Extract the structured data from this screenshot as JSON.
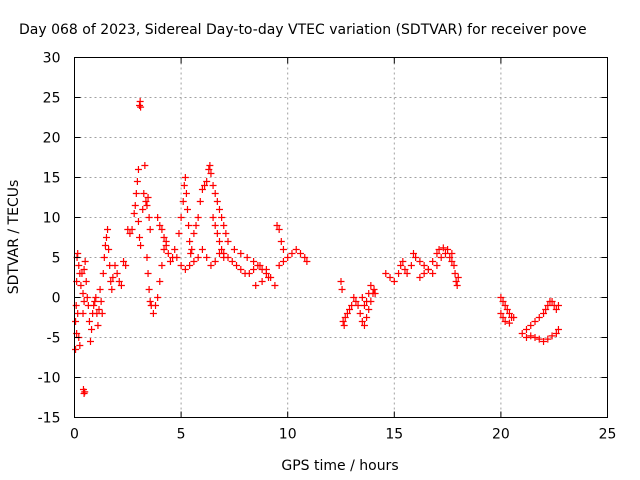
{
  "chart_data": {
    "type": "scatter",
    "title": "Day 068 of 2023, Sidereal Day-to-day VTEC variation (SDTVAR) for receiver pove",
    "xlabel": "GPS time / hours",
    "ylabel": "SDTVAR / TECUs",
    "xlim": [
      0,
      25
    ],
    "ylim": [
      -15,
      30
    ],
    "xticks": [
      0,
      5,
      10,
      15,
      20,
      25
    ],
    "yticks": [
      -15,
      -10,
      -5,
      0,
      5,
      10,
      15,
      20,
      25,
      30
    ],
    "grid": true,
    "marker": "+",
    "color": "#ff0000",
    "series": [
      {
        "name": "SDTVAR",
        "points": [
          [
            0.05,
            -6.5
          ],
          [
            0.05,
            -3
          ],
          [
            0.08,
            -1
          ],
          [
            0.1,
            2
          ],
          [
            0.12,
            5
          ],
          [
            0.15,
            5.5
          ],
          [
            0.2,
            4
          ],
          [
            0.25,
            3
          ],
          [
            0.3,
            1.5
          ],
          [
            0.35,
            3
          ],
          [
            0.4,
            0.5
          ],
          [
            0.45,
            3.5
          ],
          [
            0.5,
            4.5
          ],
          [
            0.1,
            -4.5
          ],
          [
            0.15,
            -2
          ],
          [
            0.2,
            -5
          ],
          [
            0.25,
            -6
          ],
          [
            0.4,
            -2
          ],
          [
            0.45,
            -0.5
          ],
          [
            0.42,
            -11.5
          ],
          [
            0.45,
            -12
          ],
          [
            0.48,
            -11.8
          ],
          [
            0.55,
            2
          ],
          [
            0.6,
            0
          ],
          [
            0.65,
            -1
          ],
          [
            0.7,
            -3
          ],
          [
            0.75,
            -5.5
          ],
          [
            0.8,
            -4
          ],
          [
            0.85,
            -2
          ],
          [
            0.9,
            -1
          ],
          [
            0.95,
            -0.5
          ],
          [
            1.0,
            0
          ],
          [
            1.05,
            -2
          ],
          [
            1.1,
            -3.5
          ],
          [
            1.15,
            -1.5
          ],
          [
            1.2,
            1
          ],
          [
            1.25,
            -0.5
          ],
          [
            1.3,
            -2
          ],
          [
            1.35,
            3
          ],
          [
            1.4,
            5
          ],
          [
            1.45,
            6.5
          ],
          [
            1.5,
            7.5
          ],
          [
            1.55,
            8.5
          ],
          [
            1.6,
            6
          ],
          [
            1.65,
            4
          ],
          [
            1.7,
            2
          ],
          [
            1.75,
            1
          ],
          [
            1.8,
            2.5
          ],
          [
            1.9,
            4
          ],
          [
            2.0,
            3
          ],
          [
            2.1,
            2
          ],
          [
            2.2,
            1.5
          ],
          [
            2.3,
            4.5
          ],
          [
            2.4,
            4
          ],
          [
            2.5,
            8.5
          ],
          [
            2.6,
            8
          ],
          [
            2.7,
            8.5
          ],
          [
            2.8,
            10.5
          ],
          [
            2.85,
            11.5
          ],
          [
            2.9,
            13
          ],
          [
            2.95,
            14.5
          ],
          [
            3.0,
            16
          ],
          [
            3.05,
            24
          ],
          [
            3.08,
            24.5
          ],
          [
            3.1,
            23.8
          ],
          [
            3.0,
            9.5
          ],
          [
            3.05,
            7.5
          ],
          [
            3.1,
            6.5
          ],
          [
            3.2,
            11
          ],
          [
            3.25,
            13
          ],
          [
            3.3,
            16.5
          ],
          [
            3.35,
            12
          ],
          [
            3.4,
            11.5
          ],
          [
            3.45,
            12.5
          ],
          [
            3.5,
            10
          ],
          [
            3.55,
            8.5
          ],
          [
            3.4,
            5
          ],
          [
            3.45,
            3
          ],
          [
            3.5,
            1
          ],
          [
            3.55,
            -0.5
          ],
          [
            3.6,
            -1
          ],
          [
            3.7,
            -2
          ],
          [
            3.8,
            -1
          ],
          [
            3.9,
            0
          ],
          [
            4.0,
            2
          ],
          [
            4.1,
            4
          ],
          [
            4.2,
            6
          ],
          [
            4.3,
            7
          ],
          [
            4.4,
            5.5
          ],
          [
            4.5,
            4.5
          ],
          [
            4.6,
            5
          ],
          [
            4.7,
            6
          ],
          [
            4.8,
            5
          ],
          [
            3.9,
            10
          ],
          [
            4.0,
            9
          ],
          [
            4.1,
            8.5
          ],
          [
            4.2,
            7.5
          ],
          [
            4.3,
            6.5
          ],
          [
            4.9,
            8
          ],
          [
            5.0,
            10
          ],
          [
            5.1,
            12
          ],
          [
            5.15,
            14
          ],
          [
            5.2,
            15
          ],
          [
            5.25,
            13
          ],
          [
            5.3,
            11
          ],
          [
            5.35,
            9
          ],
          [
            5.4,
            7
          ],
          [
            5.45,
            5.5
          ],
          [
            5.5,
            6
          ],
          [
            5.6,
            8
          ],
          [
            5.7,
            9
          ],
          [
            5.8,
            10
          ],
          [
            5.9,
            12
          ],
          [
            6.0,
            13.5
          ],
          [
            6.1,
            14
          ],
          [
            6.2,
            14.5
          ],
          [
            6.3,
            16
          ],
          [
            6.35,
            16.5
          ],
          [
            6.4,
            15.5
          ],
          [
            6.5,
            14
          ],
          [
            6.6,
            13
          ],
          [
            6.7,
            12
          ],
          [
            6.8,
            11
          ],
          [
            6.9,
            10
          ],
          [
            7.0,
            9
          ],
          [
            7.1,
            8
          ],
          [
            7.2,
            7
          ],
          [
            5.0,
            4
          ],
          [
            5.2,
            3.5
          ],
          [
            5.4,
            4
          ],
          [
            5.6,
            4.5
          ],
          [
            5.8,
            5
          ],
          [
            6.0,
            6
          ],
          [
            6.2,
            5
          ],
          [
            6.4,
            4
          ],
          [
            6.6,
            4.5
          ],
          [
            6.8,
            5.5
          ],
          [
            7.0,
            5
          ],
          [
            6.5,
            10
          ],
          [
            6.6,
            9
          ],
          [
            6.7,
            8
          ],
          [
            6.8,
            7
          ],
          [
            6.9,
            6
          ],
          [
            7.0,
            5.5
          ],
          [
            7.2,
            5
          ],
          [
            7.4,
            4.5
          ],
          [
            7.6,
            4
          ],
          [
            7.8,
            3.5
          ],
          [
            8.0,
            3
          ],
          [
            8.2,
            3
          ],
          [
            8.4,
            3.5
          ],
          [
            8.6,
            4
          ],
          [
            8.8,
            3.5
          ],
          [
            9.0,
            3
          ],
          [
            7.5,
            6
          ],
          [
            7.8,
            5.5
          ],
          [
            8.1,
            5
          ],
          [
            8.4,
            4.5
          ],
          [
            8.7,
            4
          ],
          [
            9.0,
            3.5
          ],
          [
            9.2,
            2.5
          ],
          [
            9.4,
            1.5
          ],
          [
            8.5,
            1.5
          ],
          [
            8.8,
            2
          ],
          [
            9.1,
            2.5
          ],
          [
            9.5,
            9
          ],
          [
            9.6,
            8.5
          ],
          [
            9.7,
            7
          ],
          [
            9.8,
            6
          ],
          [
            10.0,
            5
          ],
          [
            10.2,
            5.5
          ],
          [
            10.4,
            6
          ],
          [
            10.6,
            5.5
          ],
          [
            10.8,
            5
          ],
          [
            10.9,
            4.5
          ],
          [
            9.6,
            4
          ],
          [
            9.8,
            4.5
          ],
          [
            12.5,
            2
          ],
          [
            12.55,
            1
          ],
          [
            12.6,
            -3
          ],
          [
            12.65,
            -3.5
          ],
          [
            12.7,
            -2.5
          ],
          [
            12.8,
            -2
          ],
          [
            12.9,
            -1.5
          ],
          [
            13.0,
            -1
          ],
          [
            13.1,
            0
          ],
          [
            13.2,
            -0.5
          ],
          [
            13.3,
            -1
          ],
          [
            13.4,
            -2
          ],
          [
            13.5,
            -3
          ],
          [
            13.6,
            -3.5
          ],
          [
            13.7,
            -2.5
          ],
          [
            13.8,
            -1.5
          ],
          [
            13.9,
            -0.5
          ],
          [
            14.0,
            0.5
          ],
          [
            14.05,
            1
          ],
          [
            14.1,
            0.5
          ],
          [
            13.5,
            0
          ],
          [
            13.6,
            -1
          ],
          [
            13.7,
            -0.5
          ],
          [
            13.8,
            0.5
          ],
          [
            13.9,
            1.5
          ],
          [
            14.6,
            3
          ],
          [
            14.8,
            2.5
          ],
          [
            15.0,
            2
          ],
          [
            15.2,
            3
          ],
          [
            15.3,
            4
          ],
          [
            15.4,
            4.5
          ],
          [
            15.5,
            3.5
          ],
          [
            15.6,
            3
          ],
          [
            15.8,
            4
          ],
          [
            15.9,
            5.5
          ],
          [
            16.0,
            5
          ],
          [
            16.2,
            4.5
          ],
          [
            16.4,
            4
          ],
          [
            16.6,
            3.5
          ],
          [
            16.8,
            3
          ],
          [
            17.0,
            4
          ],
          [
            17.2,
            5
          ],
          [
            17.4,
            5.5
          ],
          [
            17.6,
            5
          ],
          [
            17.7,
            4.5
          ],
          [
            17.8,
            4
          ],
          [
            17.85,
            3
          ],
          [
            17.9,
            2
          ],
          [
            17.95,
            1.5
          ],
          [
            18.0,
            2.5
          ],
          [
            16.2,
            2.5
          ],
          [
            16.4,
            3
          ],
          [
            16.6,
            3.5
          ],
          [
            16.8,
            4.5
          ],
          [
            17.0,
            5.5
          ],
          [
            17.1,
            6
          ],
          [
            17.3,
            6.2
          ],
          [
            17.5,
            6
          ],
          [
            17.7,
            5.5
          ],
          [
            20.0,
            0
          ],
          [
            20.1,
            -0.5
          ],
          [
            20.2,
            -1
          ],
          [
            20.3,
            -1.5
          ],
          [
            20.4,
            -2
          ],
          [
            20.5,
            -2.5
          ],
          [
            20.6,
            -2.5
          ],
          [
            20.0,
            -2
          ],
          [
            20.1,
            -2.5
          ],
          [
            20.2,
            -3
          ],
          [
            20.4,
            -3.2
          ],
          [
            21.0,
            -4.5
          ],
          [
            21.2,
            -4
          ],
          [
            21.4,
            -3.5
          ],
          [
            21.6,
            -3
          ],
          [
            21.8,
            -2.5
          ],
          [
            22.0,
            -2
          ],
          [
            22.1,
            -1.5
          ],
          [
            22.2,
            -1
          ],
          [
            22.3,
            -0.5
          ],
          [
            22.4,
            -0.5
          ],
          [
            22.5,
            -1
          ],
          [
            22.6,
            -1.5
          ],
          [
            22.7,
            -1
          ],
          [
            21.2,
            -5
          ],
          [
            21.4,
            -4.8
          ],
          [
            21.6,
            -5
          ],
          [
            21.8,
            -5.2
          ],
          [
            22.0,
            -5.5
          ],
          [
            22.2,
            -5.2
          ],
          [
            22.4,
            -4.8
          ],
          [
            22.6,
            -4.5
          ],
          [
            22.7,
            -4
          ]
        ]
      }
    ]
  }
}
